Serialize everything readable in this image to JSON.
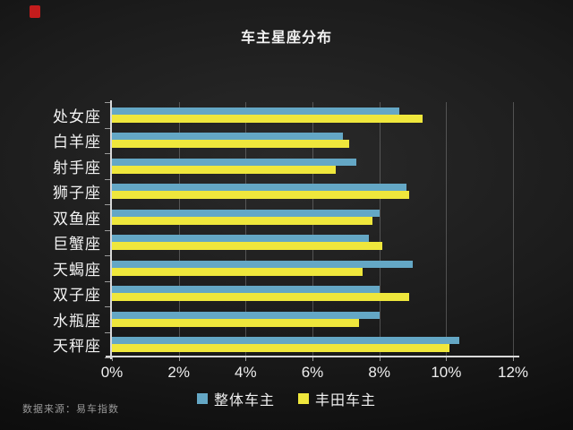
{
  "page": {
    "title": "车主星座分布",
    "source_note": "数据来源：易车指数"
  },
  "colors": {
    "series_overall": "#64a7c5",
    "series_toyota": "#efe73c",
    "badge_red": "#c41c1c",
    "axis": "#d9d9d9",
    "gridline": "#a5a5a5",
    "text": "#f2f2f2"
  },
  "chart_data": {
    "type": "bar",
    "orientation": "horizontal",
    "title": "车主星座分布",
    "categories": [
      "处女座",
      "白羊座",
      "射手座",
      "狮子座",
      "双鱼座",
      "巨蟹座",
      "天蝎座",
      "双子座",
      "水瓶座",
      "天秤座"
    ],
    "series": [
      {
        "name": "整体车主",
        "color": "#64a7c5",
        "values": [
          8.6,
          6.9,
          7.3,
          8.8,
          8.0,
          7.7,
          9.0,
          8.0,
          8.0,
          10.4
        ]
      },
      {
        "name": "丰田车主",
        "color": "#efe73c",
        "values": [
          9.3,
          7.1,
          6.7,
          8.9,
          7.8,
          8.1,
          7.5,
          8.9,
          7.4,
          10.1
        ]
      }
    ],
    "x_axis": {
      "min": 0,
      "max": 12,
      "tick_step": 2,
      "unit": "%",
      "tick_labels": [
        "0%",
        "2%",
        "4%",
        "6%",
        "8%",
        "10%",
        "12%"
      ]
    },
    "grid": true,
    "legend_position": "bottom"
  }
}
